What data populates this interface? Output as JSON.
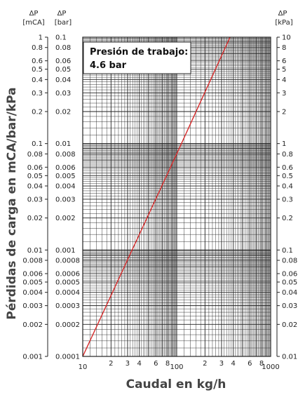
{
  "chart_data": {
    "type": "line",
    "title": "",
    "xlabel": "Caudal en kg/h",
    "ylabel": "Pérdidas de carga en mCA/bar/kPa",
    "x_scale": "log",
    "y_scale": "log",
    "xlim": [
      10,
      1000
    ],
    "ylim_bar": [
      0.0001,
      0.1
    ],
    "grid": true,
    "annotation": [
      "Presión de trabajo:",
      "4.6 bar"
    ],
    "x_ticks": [
      {
        "v": 10,
        "label": "10"
      },
      {
        "v": 20,
        "label": "2"
      },
      {
        "v": 30,
        "label": "3"
      },
      {
        "v": 40,
        "label": "4"
      },
      {
        "v": 60,
        "label": "6"
      },
      {
        "v": 80,
        "label": "8"
      },
      {
        "v": 100,
        "label": "100"
      },
      {
        "v": 200,
        "label": "2"
      },
      {
        "v": 300,
        "label": "3"
      },
      {
        "v": 400,
        "label": "4"
      },
      {
        "v": 600,
        "label": "6"
      },
      {
        "v": 800,
        "label": "8"
      },
      {
        "v": 1000,
        "label": "1000"
      }
    ],
    "axes": [
      {
        "symbol": "ΔP",
        "unit": "[mCA]",
        "side": "left-outer",
        "ticks": [
          "1",
          "0.8",
          "0.6",
          "0.5",
          "0.4",
          "0.3",
          "0.2",
          "0.1",
          "0.08",
          "0.06",
          "0.05",
          "0.04",
          "0.03",
          "0.02",
          "0.01",
          "0.008",
          "0.006",
          "0.005",
          "0.004",
          "0.003",
          "0.002",
          "0.001"
        ]
      },
      {
        "symbol": "ΔP",
        "unit": "[bar]",
        "side": "left-inner",
        "ticks": [
          "0.1",
          "0.08",
          "0.06",
          "0.05",
          "0.04",
          "0.03",
          "0.02",
          "0.01",
          "0.008",
          "0.006",
          "0.005",
          "0.004",
          "0.003",
          "0.002",
          "0.001",
          "0.0008",
          "0.0006",
          "0.0005",
          "0.0004",
          "0.0003",
          "0.0002",
          "0.0001"
        ]
      },
      {
        "symbol": "ΔP",
        "unit": "[kPa]",
        "side": "right",
        "ticks": [
          "10",
          "8",
          "6",
          "5",
          "4",
          "3",
          "2",
          "1",
          "0.8",
          "0.6",
          "0.5",
          "0.4",
          "0.3",
          "0.2",
          "0.1",
          "0.08",
          "0.06",
          "0.05",
          "0.04",
          "0.03",
          "0.02",
          "0.01"
        ]
      }
    ],
    "series": [
      {
        "color": "#d62a2a",
        "x": [
          10,
          100,
          370
        ],
        "y_bar": [
          0.0001,
          0.008,
          0.1
        ]
      }
    ]
  }
}
